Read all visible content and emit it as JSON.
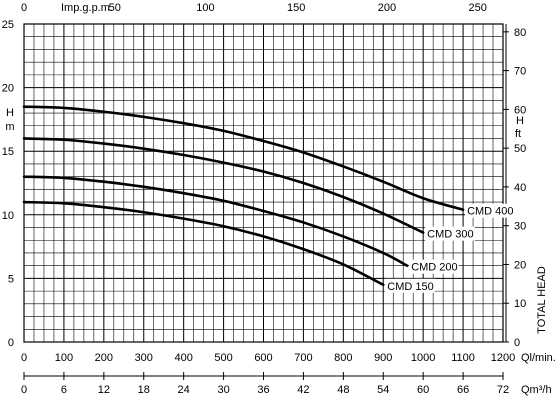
{
  "chart_data": {
    "type": "line",
    "x_label_bottom_primary": "Ql/min.",
    "x_label_bottom_secondary": "Qm³/h",
    "x_label_top": "Imp.g.p.m.",
    "y_label_left": "H\nm",
    "y_label_right": "H\nft",
    "y_label_right_rotated": "TOTAL HEAD",
    "x_ticks_lmin": [
      0,
      100,
      200,
      300,
      400,
      500,
      600,
      700,
      800,
      900,
      1000,
      1100,
      1200
    ],
    "x_ticks_m3h": [
      0,
      6,
      12,
      18,
      24,
      30,
      36,
      42,
      48,
      54,
      60,
      66,
      72
    ],
    "x_ticks_gpm": [
      0,
      50,
      100,
      150,
      200,
      250
    ],
    "y_ticks_m": [
      0,
      5,
      10,
      15,
      20,
      25
    ],
    "y_ticks_ft": [
      0,
      10,
      20,
      30,
      40,
      50,
      60,
      70,
      80
    ],
    "xlim": [
      0,
      1200
    ],
    "ylim": [
      0,
      25
    ],
    "grid": true,
    "series": [
      {
        "name": "CMD 400",
        "points": [
          [
            0,
            18.5
          ],
          [
            100,
            18.4
          ],
          [
            200,
            18.1
          ],
          [
            300,
            17.7
          ],
          [
            400,
            17.2
          ],
          [
            500,
            16.6
          ],
          [
            600,
            15.8
          ],
          [
            700,
            14.9
          ],
          [
            800,
            13.8
          ],
          [
            900,
            12.6
          ],
          [
            1000,
            11.3
          ],
          [
            1100,
            10.4
          ]
        ]
      },
      {
        "name": "CMD 300",
        "points": [
          [
            0,
            16.0
          ],
          [
            100,
            15.9
          ],
          [
            200,
            15.6
          ],
          [
            300,
            15.2
          ],
          [
            400,
            14.7
          ],
          [
            500,
            14.1
          ],
          [
            600,
            13.4
          ],
          [
            700,
            12.5
          ],
          [
            800,
            11.4
          ],
          [
            900,
            10.1
          ],
          [
            1000,
            8.6
          ]
        ]
      },
      {
        "name": "CMD 200",
        "points": [
          [
            0,
            13.0
          ],
          [
            100,
            12.9
          ],
          [
            200,
            12.6
          ],
          [
            300,
            12.2
          ],
          [
            400,
            11.7
          ],
          [
            500,
            11.1
          ],
          [
            600,
            10.3
          ],
          [
            700,
            9.4
          ],
          [
            800,
            8.3
          ],
          [
            900,
            7.0
          ],
          [
            960,
            6.0
          ]
        ]
      },
      {
        "name": "CMD 150",
        "points": [
          [
            0,
            11.0
          ],
          [
            100,
            10.9
          ],
          [
            200,
            10.6
          ],
          [
            300,
            10.2
          ],
          [
            400,
            9.7
          ],
          [
            500,
            9.1
          ],
          [
            600,
            8.3
          ],
          [
            700,
            7.3
          ],
          [
            800,
            6.1
          ],
          [
            900,
            4.5
          ]
        ]
      }
    ]
  }
}
